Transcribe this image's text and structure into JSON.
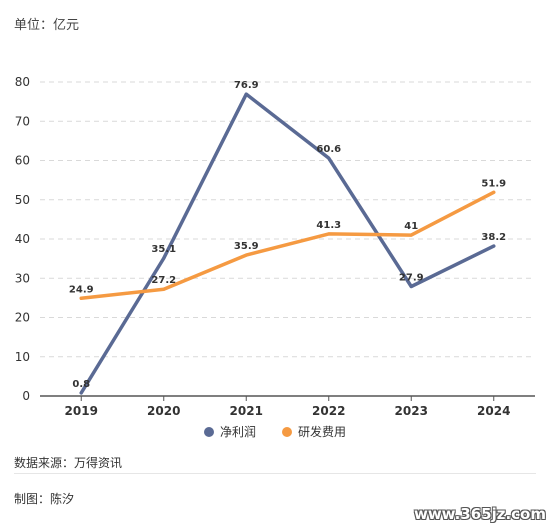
{
  "header": {
    "unit": "单位：亿元"
  },
  "chart_data": {
    "type": "line",
    "categories": [
      "2019",
      "2020",
      "2021",
      "2022",
      "2023",
      "2024"
    ],
    "series": [
      {
        "name": "净利润",
        "color": "#5a6a94",
        "values": [
          0.8,
          35.1,
          76.9,
          60.6,
          27.9,
          38.2
        ]
      },
      {
        "name": "研发费用",
        "color": "#f59a42",
        "values": [
          24.9,
          27.2,
          35.9,
          41.3,
          41.0,
          51.9
        ]
      }
    ],
    "ylim": [
      0,
      80
    ],
    "yticks": [
      0,
      10,
      20,
      30,
      40,
      50,
      60,
      70,
      80
    ],
    "grid": true,
    "legend_position": "bottom"
  },
  "footer": {
    "source": "数据来源：万得资讯",
    "author": "制图：陈汐",
    "watermark": "www.365jz.com"
  }
}
